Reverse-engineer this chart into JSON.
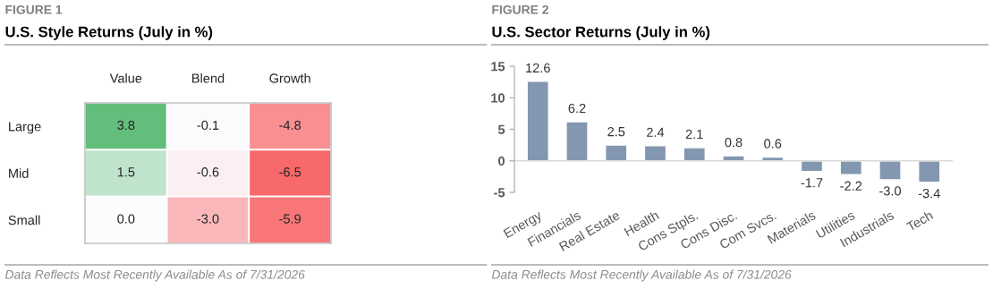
{
  "chart_data": [
    {
      "type": "heatmap",
      "subtitle": "FIGURE 1",
      "title": "U.S. Style Returns (July in %)",
      "categories": [
        "Value",
        "Blend",
        "Growth"
      ],
      "y_categories": [
        "Large",
        "Mid",
        "Small"
      ],
      "cells": [
        [
          3.8,
          -0.1,
          -4.8
        ],
        [
          1.5,
          -0.6,
          -6.5
        ],
        [
          0.0,
          -3.0,
          -5.9
        ]
      ],
      "cell_labels": [
        [
          "3.8",
          "-0.1",
          "-4.8"
        ],
        [
          "1.5",
          "-0.6",
          "-6.5"
        ],
        [
          "0.0",
          "-3.0",
          "-5.9"
        ]
      ],
      "colors": [
        "#f8696b",
        "#fcfcff",
        "#63be7b"
      ],
      "annotations": [
        "Data Reflects Most Recently Available As of 7/31/2026"
      ]
    },
    {
      "type": "bar",
      "subtitle": "FIGURE 2",
      "title": "U.S. Sector Returns (July in %)",
      "categories": [
        "Energy",
        "Financials",
        "Real Estate",
        "Health",
        "Cons Stpls.",
        "Cons Disc.",
        "Com Svcs.",
        "Materials",
        "Utilities",
        "Industrials",
        "Tech"
      ],
      "series": [
        {
          "color": "#8497b0",
          "values": [
            12.6,
            6.2,
            2.5,
            2.4,
            2.1,
            0.8,
            0.6,
            -1.7,
            -2.2,
            -3.0,
            -3.4
          ]
        }
      ],
      "value_labels": [
        "12.6",
        "6.2",
        "2.5",
        "2.4",
        "2.1",
        "0.8",
        "0.6",
        "-1.7",
        "-2.2",
        "-3.0",
        "-3.4"
      ],
      "ylim": [
        -5,
        15
      ],
      "yticks": [
        -5,
        0,
        5,
        10,
        15
      ],
      "annotations": [
        "Data Reflects Most Recently Available As of 7/31/2026"
      ]
    }
  ]
}
